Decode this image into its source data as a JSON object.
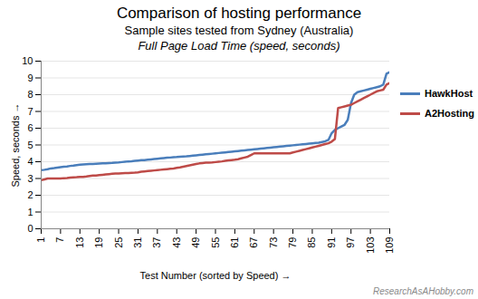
{
  "chart_data": {
    "type": "line",
    "title": "Comparison of hosting performance",
    "subtitle": [
      "Sample sites tested from Sydney (Australia)",
      "Full Page Load Time (speed, seconds)"
    ],
    "x_label": "Test Number (sorted by Speed)",
    "y_label": "Speed, seconds",
    "annotations": [
      "ResearchAsAHobby.com"
    ],
    "x": [
      1,
      2,
      3,
      4,
      5,
      6,
      7,
      8,
      9,
      10,
      11,
      12,
      13,
      14,
      15,
      16,
      17,
      18,
      19,
      20,
      21,
      22,
      23,
      24,
      25,
      26,
      27,
      28,
      29,
      30,
      31,
      32,
      33,
      34,
      35,
      36,
      37,
      38,
      39,
      40,
      41,
      42,
      43,
      44,
      45,
      46,
      47,
      48,
      49,
      50,
      51,
      52,
      53,
      54,
      55,
      56,
      57,
      58,
      59,
      60,
      61,
      62,
      63,
      64,
      65,
      66,
      67,
      68,
      69,
      70,
      71,
      72,
      73,
      74,
      75,
      76,
      77,
      78,
      79,
      80,
      81,
      82,
      83,
      84,
      85,
      86,
      87,
      88,
      89,
      90,
      91,
      92,
      93,
      94,
      95,
      96,
      97,
      98,
      99,
      100,
      101,
      102,
      103,
      104,
      105,
      106,
      107,
      108,
      109
    ],
    "series": [
      {
        "name": "HawkHost",
        "color": "#4a7ebb",
        "values": [
          3.5,
          3.52,
          3.55,
          3.6,
          3.62,
          3.65,
          3.68,
          3.7,
          3.72,
          3.75,
          3.77,
          3.8,
          3.82,
          3.84,
          3.85,
          3.86,
          3.87,
          3.88,
          3.89,
          3.9,
          3.91,
          3.92,
          3.93,
          3.95,
          3.96,
          3.98,
          4.0,
          4.02,
          4.03,
          4.05,
          4.07,
          4.09,
          4.1,
          4.12,
          4.14,
          4.16,
          4.18,
          4.2,
          4.22,
          4.24,
          4.25,
          4.27,
          4.28,
          4.3,
          4.31,
          4.32,
          4.34,
          4.36,
          4.38,
          4.4,
          4.42,
          4.44,
          4.46,
          4.48,
          4.5,
          4.52,
          4.54,
          4.56,
          4.58,
          4.6,
          4.62,
          4.64,
          4.66,
          4.68,
          4.7,
          4.72,
          4.74,
          4.76,
          4.78,
          4.8,
          4.82,
          4.84,
          4.86,
          4.88,
          4.9,
          4.92,
          4.94,
          4.96,
          4.98,
          5.0,
          5.02,
          5.04,
          5.06,
          5.08,
          5.1,
          5.12,
          5.14,
          5.18,
          5.22,
          5.3,
          5.7,
          5.9,
          6.0,
          6.1,
          6.2,
          6.5,
          7.5,
          8.0,
          8.15,
          8.2,
          8.25,
          8.3,
          8.35,
          8.4,
          8.45,
          8.5,
          8.6,
          9.25,
          9.35
        ]
      },
      {
        "name": "A2Hosting",
        "color": "#be4b48",
        "values": [
          2.9,
          2.95,
          3.0,
          3.0,
          3.0,
          3.0,
          3.0,
          3.02,
          3.03,
          3.05,
          3.07,
          3.08,
          3.1,
          3.1,
          3.12,
          3.15,
          3.17,
          3.18,
          3.2,
          3.22,
          3.24,
          3.26,
          3.28,
          3.3,
          3.3,
          3.31,
          3.32,
          3.33,
          3.34,
          3.35,
          3.37,
          3.4,
          3.42,
          3.44,
          3.46,
          3.48,
          3.5,
          3.52,
          3.54,
          3.56,
          3.58,
          3.6,
          3.63,
          3.66,
          3.7,
          3.74,
          3.78,
          3.82,
          3.86,
          3.9,
          3.92,
          3.94,
          3.95,
          3.96,
          3.98,
          4.0,
          4.02,
          4.05,
          4.08,
          4.1,
          4.12,
          4.15,
          4.2,
          4.25,
          4.3,
          4.4,
          4.5,
          4.5,
          4.5,
          4.5,
          4.5,
          4.5,
          4.5,
          4.5,
          4.5,
          4.5,
          4.5,
          4.5,
          4.55,
          4.6,
          4.65,
          4.7,
          4.75,
          4.8,
          4.85,
          4.9,
          4.95,
          5.0,
          5.05,
          5.1,
          5.2,
          5.35,
          7.2,
          7.25,
          7.3,
          7.35,
          7.4,
          7.5,
          7.6,
          7.7,
          7.8,
          7.9,
          8.0,
          8.1,
          8.2,
          8.25,
          8.3,
          8.6,
          8.7
        ]
      }
    ],
    "xlim": [
      1,
      109
    ],
    "xticks": [
      1,
      7,
      13,
      19,
      25,
      31,
      37,
      43,
      49,
      55,
      61,
      67,
      73,
      79,
      85,
      91,
      97,
      103,
      109
    ],
    "ylim": [
      0,
      10
    ],
    "yticks": [
      0,
      1,
      2,
      3,
      4,
      5,
      6,
      7,
      8,
      9,
      10
    ],
    "grid": true,
    "legend": "right"
  }
}
